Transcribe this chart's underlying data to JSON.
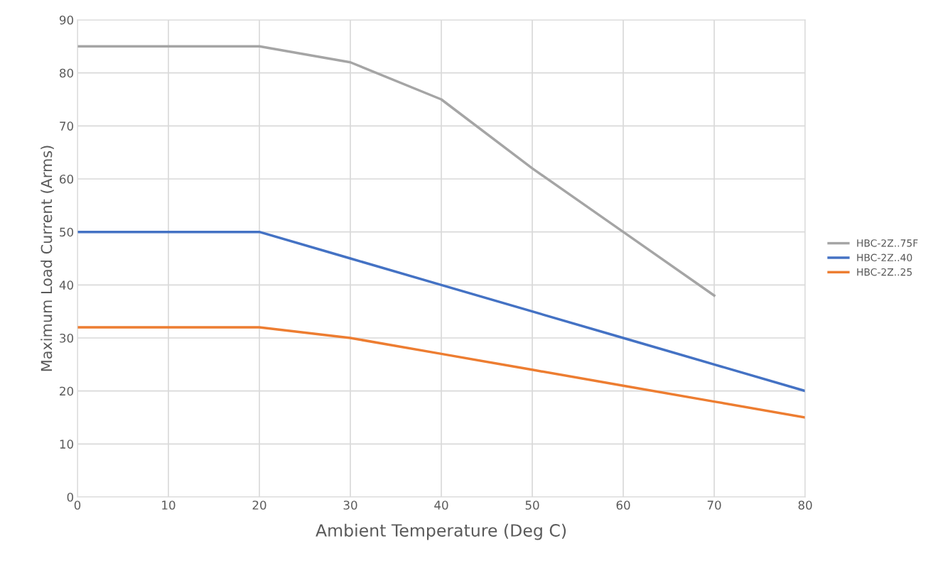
{
  "chart_data": {
    "type": "line",
    "xlabel": "Ambient Temperature (Deg C)",
    "ylabel": "Maximum Load Current (Arms)",
    "xlim": [
      0,
      80
    ],
    "xticks": [
      0,
      10,
      20,
      30,
      40,
      50,
      60,
      70,
      80
    ],
    "ylim": [
      0,
      90
    ],
    "yticks": [
      0,
      10,
      20,
      30,
      40,
      50,
      60,
      70,
      80,
      90
    ],
    "grid": true,
    "legend": "right",
    "marker": "none",
    "line_style": "solid",
    "series": [
      {
        "name": "HBC-2Z..75F",
        "color": "#a5a5a5",
        "x": [
          0,
          10,
          20,
          30,
          40,
          50,
          60,
          70
        ],
        "values": [
          85,
          85,
          85,
          82,
          75,
          62,
          50,
          38
        ]
      },
      {
        "name": "HBC-2Z..40",
        "color": "#4472c4",
        "x": [
          0,
          20,
          30,
          40,
          50,
          60,
          70,
          80
        ],
        "values": [
          50,
          50,
          45,
          40,
          35,
          30,
          25,
          20
        ]
      },
      {
        "name": "HBC-2Z..25",
        "color": "#ed7d31",
        "x": [
          0,
          20,
          30,
          40,
          50,
          60,
          70,
          80
        ],
        "values": [
          32,
          32,
          30,
          27,
          24,
          21,
          18,
          15
        ]
      }
    ]
  }
}
